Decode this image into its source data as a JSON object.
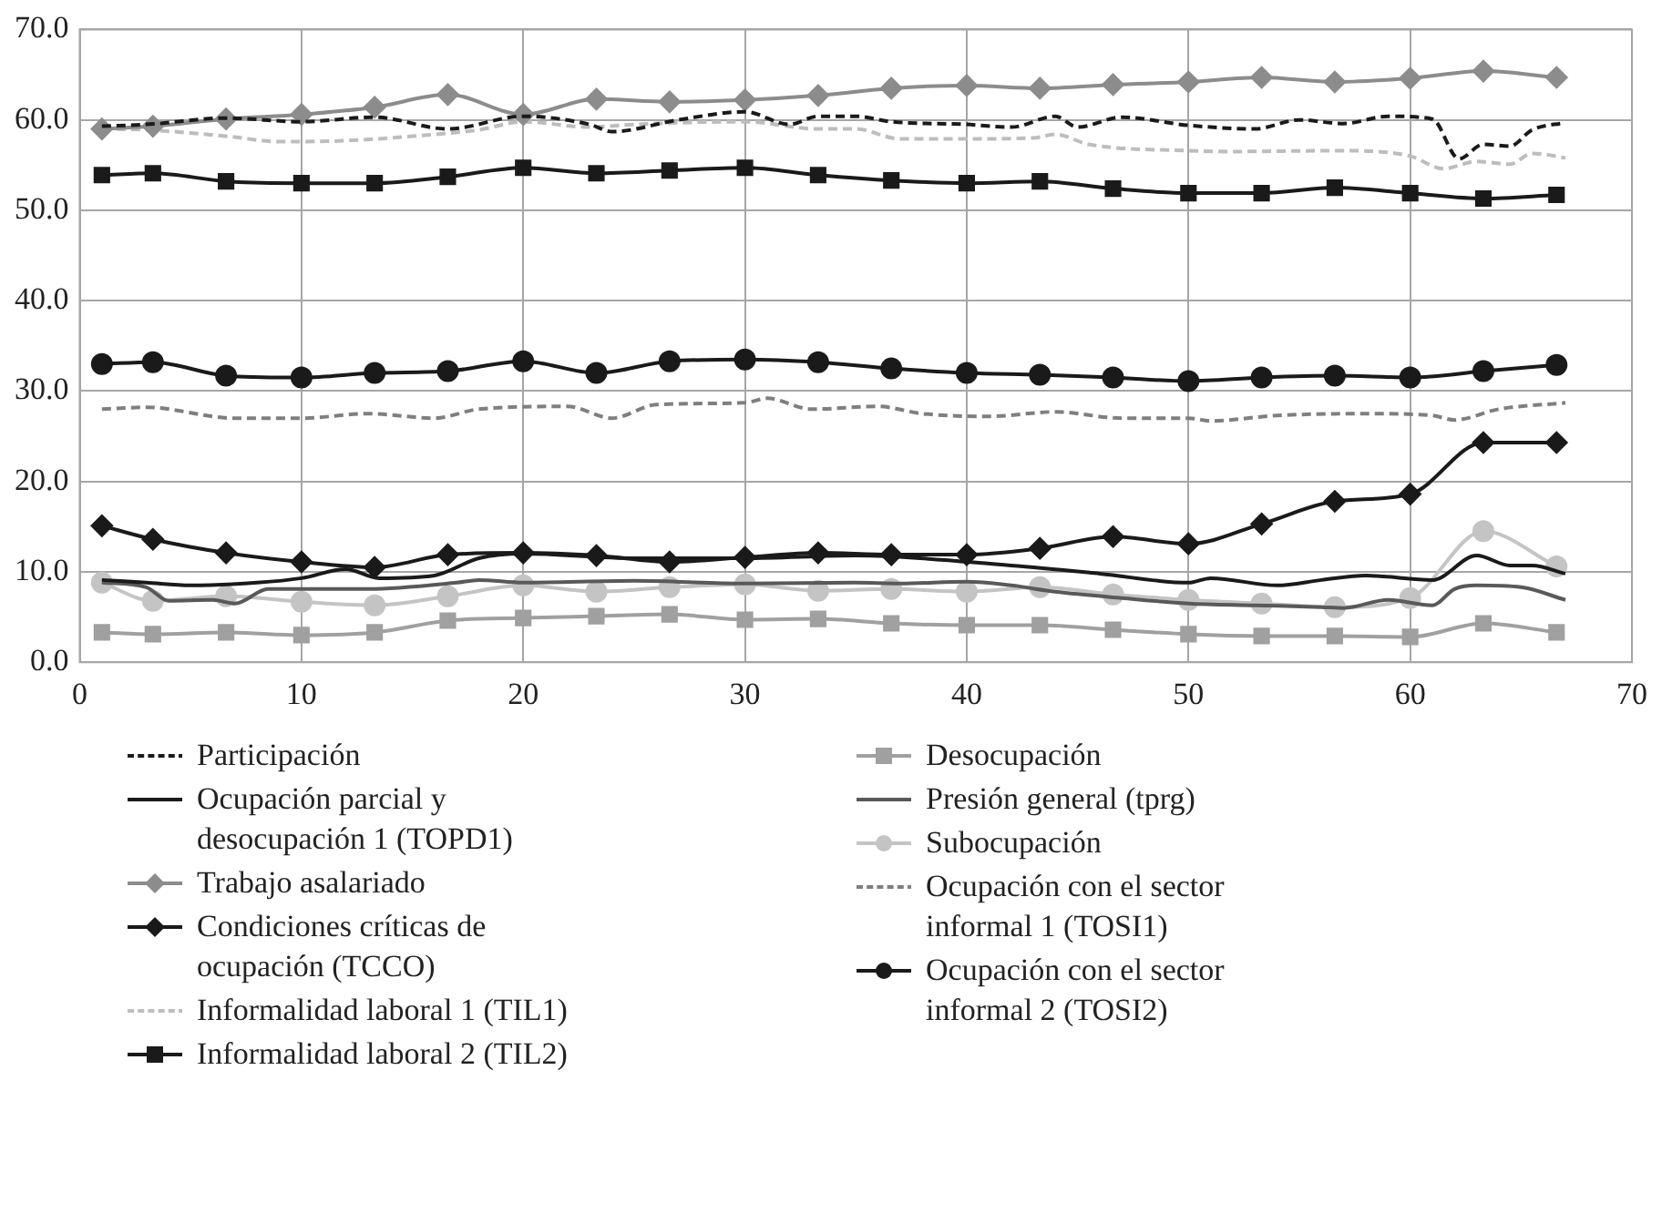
{
  "chart_data": {
    "type": "line",
    "x": [
      1,
      3.3,
      6.6,
      10,
      13.3,
      16.6,
      20,
      23.3,
      26.6,
      30,
      33.3,
      36.6,
      40,
      43.3,
      46.6,
      50,
      53.3,
      56.6,
      60,
      63.3,
      66.6
    ],
    "xlim": [
      0,
      70
    ],
    "xticks": [
      0,
      10,
      20,
      30,
      40,
      50,
      60,
      70
    ],
    "ylim": [
      0,
      70
    ],
    "yticks": [
      {
        "value": 0,
        "label": "0.0"
      },
      {
        "value": 10,
        "label": "10.0"
      },
      {
        "value": 20,
        "label": "20.0"
      },
      {
        "value": 30,
        "label": "30.0"
      },
      {
        "value": 40,
        "label": "40.0"
      },
      {
        "value": 50,
        "label": "50.0"
      },
      {
        "value": 60,
        "label": "60.0"
      },
      {
        "value": 70,
        "label": "70.0"
      }
    ],
    "grid": true,
    "legend": "bottom",
    "series": [
      {
        "name": "Participación",
        "color": "#1a1a1a",
        "line_style": "dashed",
        "marker": "none",
        "x": [
          1,
          3,
          6.6,
          10,
          13.3,
          16.6,
          20,
          23,
          24,
          27,
          30,
          32,
          33.3,
          35,
          36.6,
          40,
          42,
          44,
          45,
          47,
          50,
          53,
          55,
          57,
          59,
          61,
          62.2,
          63.3,
          64.5,
          65.5,
          67
        ],
        "values": [
          59.3,
          59.5,
          60.2,
          59.8,
          60.3,
          59,
          60.4,
          59.5,
          58.7,
          60,
          60.9,
          59.5,
          60.4,
          60.4,
          59.8,
          59.5,
          59.2,
          60.4,
          59.2,
          60.3,
          59.4,
          59,
          60,
          59.6,
          60.4,
          60.1,
          55.7,
          57.3,
          57.1,
          58.9,
          59.7
        ]
      },
      {
        "name": "Ocupación parcial y desocupación 1 (TOPD1)",
        "color": "#1a1a1a",
        "line_style": "solid",
        "marker": "none",
        "x": [
          1,
          3,
          5,
          8,
          10,
          12,
          13.5,
          16,
          18,
          20,
          25,
          30,
          35,
          42,
          46,
          50,
          51,
          54,
          56,
          58,
          61,
          63,
          64.5,
          65.5,
          67
        ],
        "values": [
          9.1,
          8.8,
          8.5,
          8.8,
          9.3,
          10.3,
          9.3,
          9.6,
          11.5,
          12,
          11.5,
          11.5,
          11.8,
          10.7,
          9.8,
          8.8,
          9.3,
          8.5,
          9.1,
          9.6,
          9.1,
          11.8,
          10.7,
          10.7,
          9.8
        ]
      },
      {
        "name": "Trabajo asalariado",
        "color": "#8c8c8c",
        "line_style": "solid",
        "marker": "diamond",
        "values": [
          59.0,
          59.3,
          60.1,
          60.6,
          61.4,
          62.8,
          60.6,
          62.3,
          62.0,
          62.2,
          62.7,
          63.5,
          63.8,
          63.5,
          63.9,
          64.2,
          64.7,
          64.2,
          64.6,
          65.4,
          64.7
        ]
      },
      {
        "name": "Condiciones críticas de ocupación (TCCO)",
        "color": "#1a1a1a",
        "line_style": "solid",
        "marker": "diamond",
        "values": [
          15.1,
          13.6,
          12.1,
          11.1,
          10.5,
          11.9,
          12.1,
          11.8,
          11.1,
          11.6,
          12.1,
          11.9,
          11.9,
          12.6,
          13.9,
          13.1,
          15.3,
          17.8,
          18.6,
          24.3,
          24.3
        ]
      },
      {
        "name": "Informalidad laboral 1 (TIL1)",
        "color": "#bdbdbd",
        "line_style": "dashed",
        "marker": "none",
        "x": [
          1,
          3,
          6.6,
          9,
          12,
          15,
          18,
          20,
          23,
          25,
          30,
          33.3,
          35,
          37,
          40,
          43,
          44,
          45.5,
          50,
          52,
          57,
          60,
          61.5,
          63,
          64.5,
          65.5,
          67
        ],
        "values": [
          59,
          58.9,
          58.2,
          57.6,
          57.7,
          58.2,
          58.9,
          59.8,
          59.2,
          59.5,
          59.8,
          59,
          59,
          57.9,
          57.9,
          58,
          58.4,
          57.3,
          56.6,
          56.5,
          56.6,
          56,
          54.6,
          55.4,
          55.1,
          56.3,
          55.8
        ]
      },
      {
        "name": "Informalidad laboral 2 (TIL2)",
        "color": "#1a1a1a",
        "line_style": "solid",
        "marker": "square",
        "values": [
          53.9,
          54.1,
          53.2,
          53.0,
          53.0,
          53.7,
          54.7,
          54.1,
          54.4,
          54.7,
          53.9,
          53.3,
          53.0,
          53.2,
          52.4,
          51.9,
          51.9,
          52.5,
          51.9,
          51.3,
          51.7
        ]
      },
      {
        "name": "Desocupación",
        "color": "#a0a0a0",
        "line_style": "solid",
        "marker": "square",
        "values": [
          3.3,
          3.1,
          3.3,
          3.0,
          3.3,
          4.6,
          4.9,
          5.1,
          5.3,
          4.7,
          4.8,
          4.3,
          4.1,
          4.1,
          3.6,
          3.1,
          2.9,
          2.9,
          2.8,
          4.3,
          3.3
        ]
      },
      {
        "name": "Presión general (tprg)",
        "color": "#595959",
        "line_style": "solid",
        "marker": "none",
        "x": [
          1,
          3,
          4,
          6,
          7,
          8.5,
          13,
          17,
          18,
          20,
          25,
          30,
          35,
          37,
          40,
          42,
          44,
          47,
          50,
          53,
          56,
          57,
          59,
          61,
          62,
          63,
          65,
          67
        ],
        "values": [
          8.8,
          8.3,
          6.8,
          6.9,
          6.5,
          8.1,
          8.1,
          8.8,
          9.1,
          8.8,
          9,
          8.7,
          8.8,
          8.7,
          8.9,
          8.5,
          7.8,
          7.1,
          6.5,
          6.3,
          6.1,
          6,
          6.9,
          6.3,
          8.1,
          8.5,
          8.3,
          6.9
        ]
      },
      {
        "name": "Subocupación",
        "color": "#c4c4c4",
        "line_style": "solid",
        "marker": "circle",
        "values": [
          8.8,
          6.8,
          7.3,
          6.7,
          6.3,
          7.3,
          8.5,
          7.8,
          8.3,
          8.6,
          7.9,
          8.1,
          7.8,
          8.3,
          7.5,
          6.9,
          6.5,
          6.1,
          7.1,
          14.5,
          10.6
        ]
      },
      {
        "name": "Ocupación con el sector informal 1 (TOSI1)",
        "color": "#7f7f7f",
        "line_style": "dashed",
        "marker": "none",
        "x": [
          1,
          3,
          7,
          10,
          13,
          16,
          18,
          22,
          24,
          26,
          30,
          31,
          33,
          36,
          38,
          41,
          44,
          47,
          50,
          51,
          54,
          58,
          61,
          62,
          64,
          67
        ],
        "values": [
          28,
          28.2,
          27,
          27,
          27.5,
          27,
          28,
          28.3,
          27,
          28.5,
          28.7,
          29.2,
          28,
          28.3,
          27.5,
          27.2,
          27.7,
          27,
          27,
          26.7,
          27.3,
          27.5,
          27.3,
          26.8,
          28,
          28.7
        ]
      },
      {
        "name": "Ocupación con el sector informal 2 (TOSI2)",
        "color": "#1a1a1a",
        "line_style": "solid",
        "marker": "circle",
        "values": [
          33.0,
          33.2,
          31.7,
          31.5,
          32.0,
          32.2,
          33.3,
          32.0,
          33.3,
          33.5,
          33.2,
          32.5,
          32.0,
          31.8,
          31.5,
          31.1,
          31.5,
          31.7,
          31.5,
          32.2,
          32.9
        ]
      }
    ]
  }
}
